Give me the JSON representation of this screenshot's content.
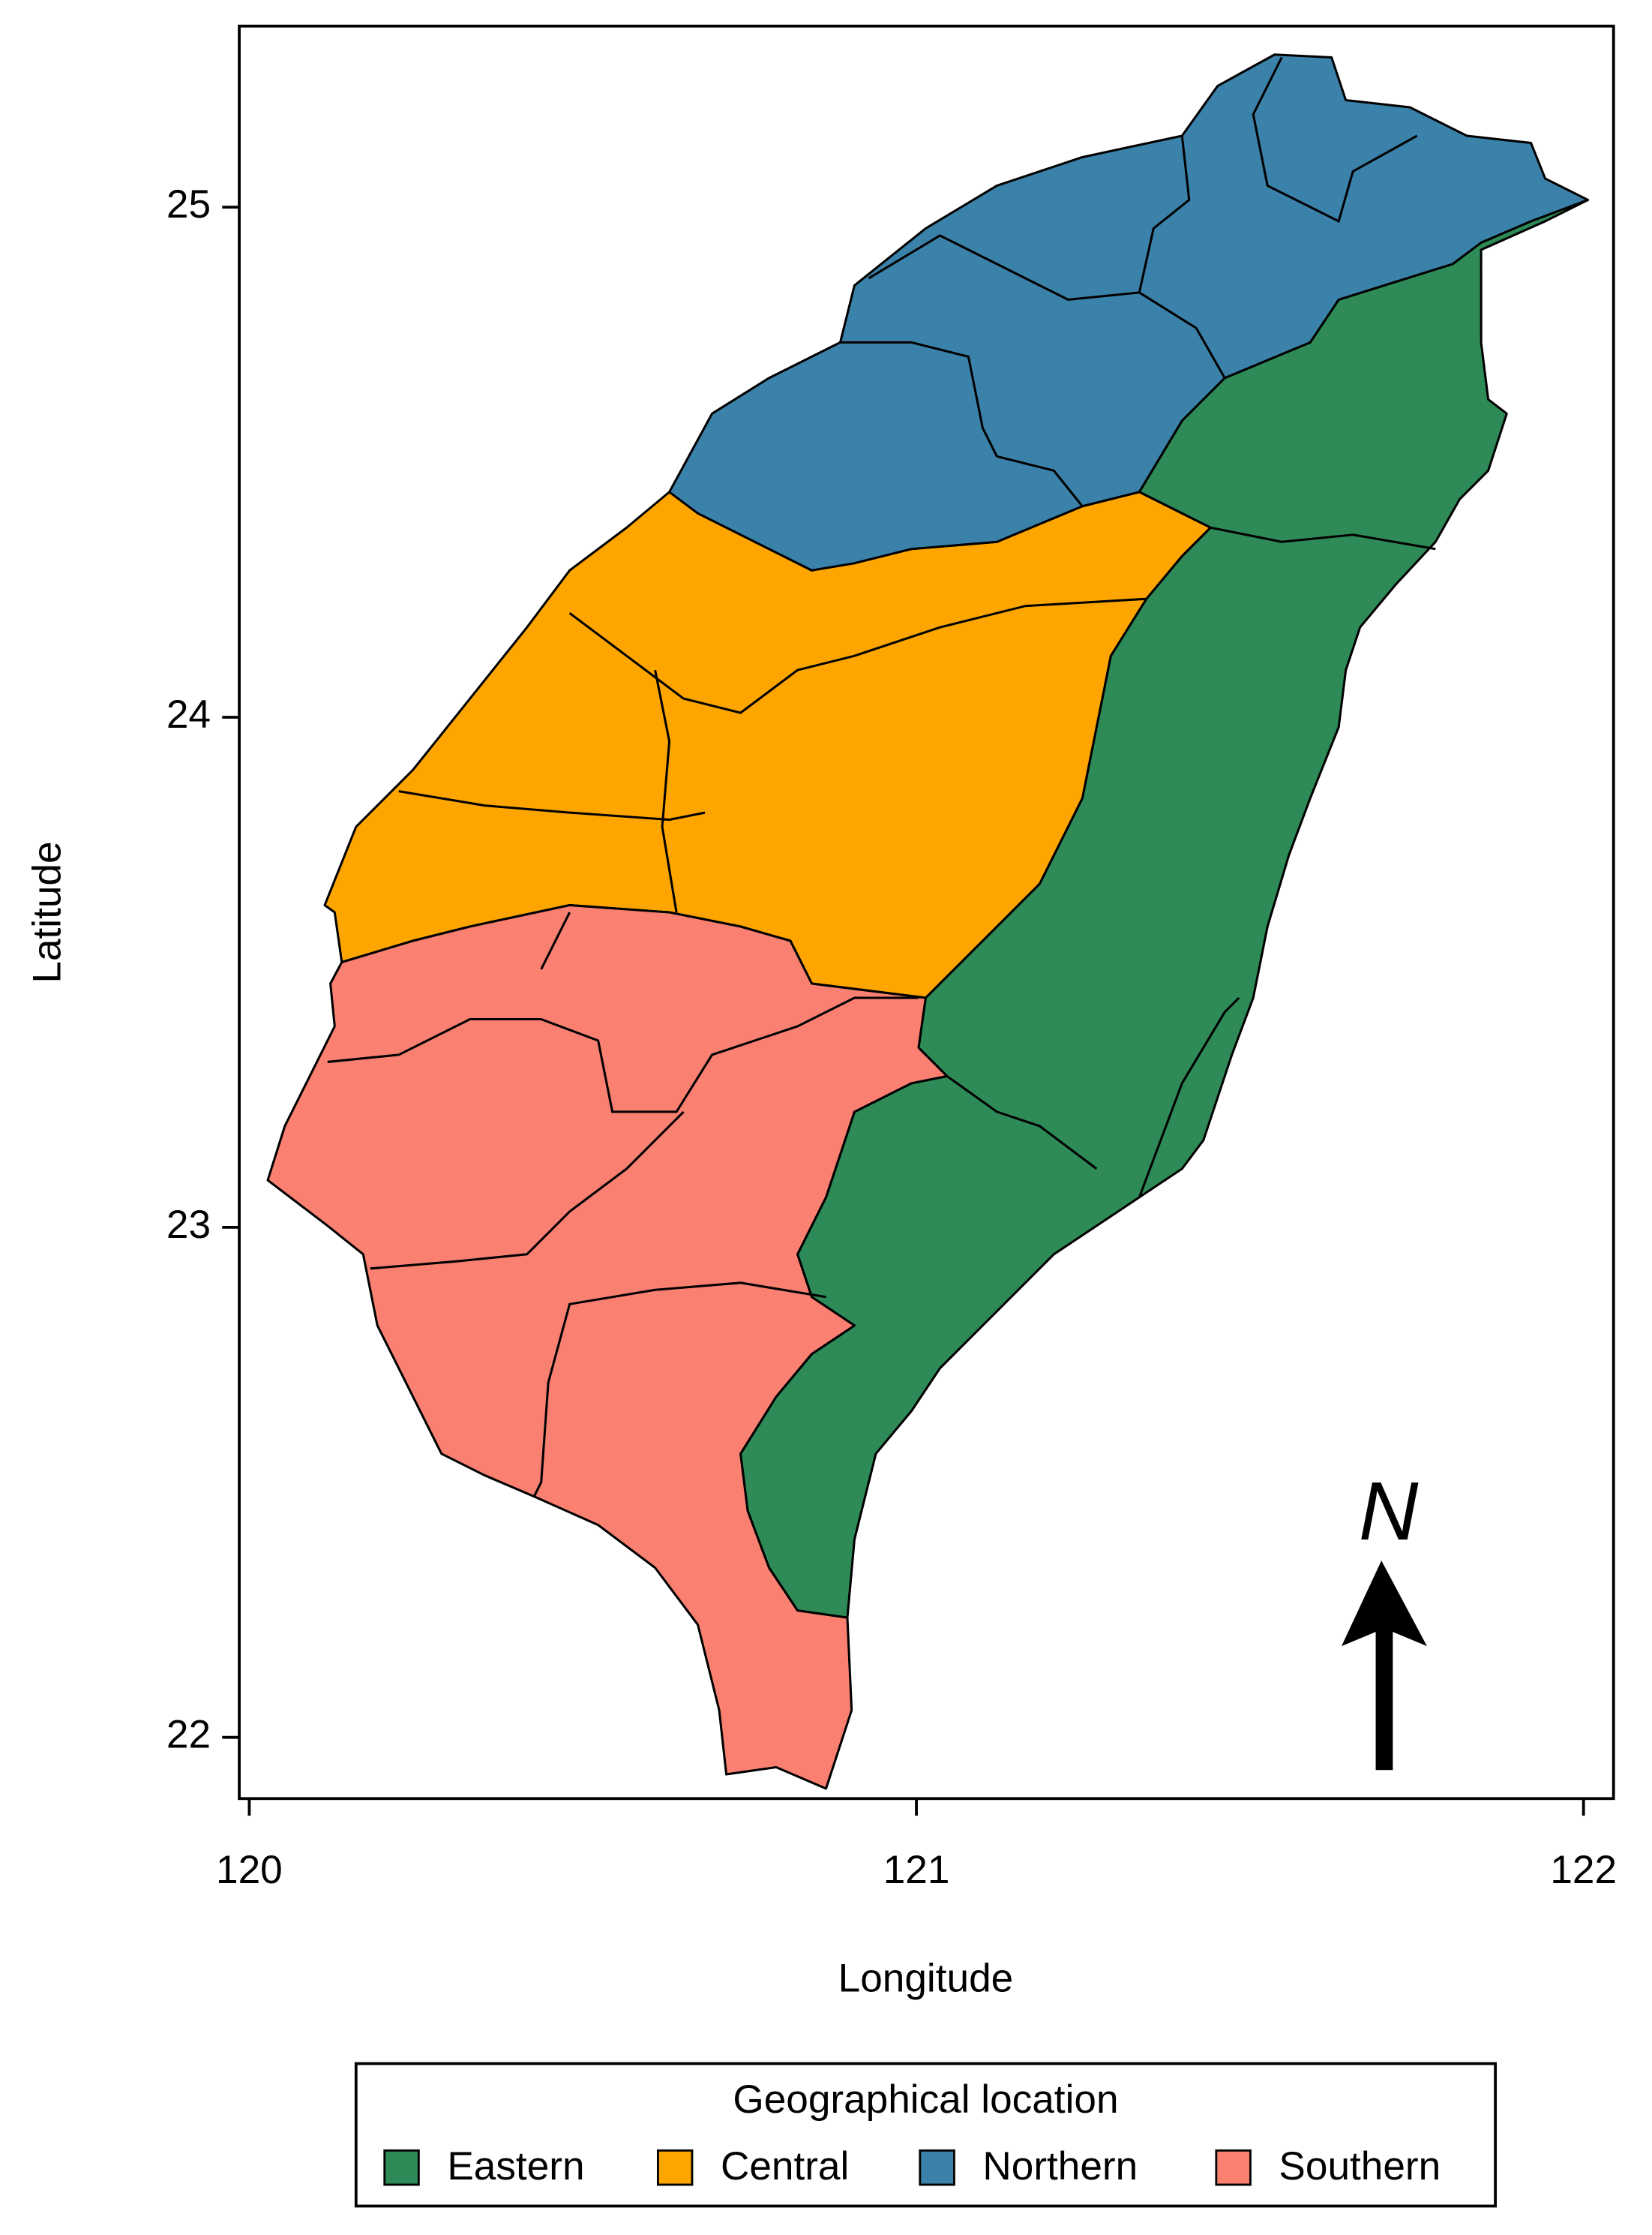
{
  "map": {
    "xlabel": "Longitude",
    "ylabel": "Latitude",
    "xlim": [
      119.985,
      122.045
    ],
    "ylim": [
      21.88,
      25.355
    ],
    "xticks": [
      120,
      121,
      122
    ],
    "yticks": [
      22,
      23,
      24,
      25
    ],
    "north": "N",
    "legend": {
      "title": "Geographical location",
      "items": [
        {
          "name": "Eastern",
          "color": "#2e8b57"
        },
        {
          "name": "Central",
          "color": "#ffa500"
        },
        {
          "name": "Northern",
          "color": "#3b82aa"
        },
        {
          "name": "Southern",
          "color": "#fa8072"
        }
      ]
    }
  }
}
